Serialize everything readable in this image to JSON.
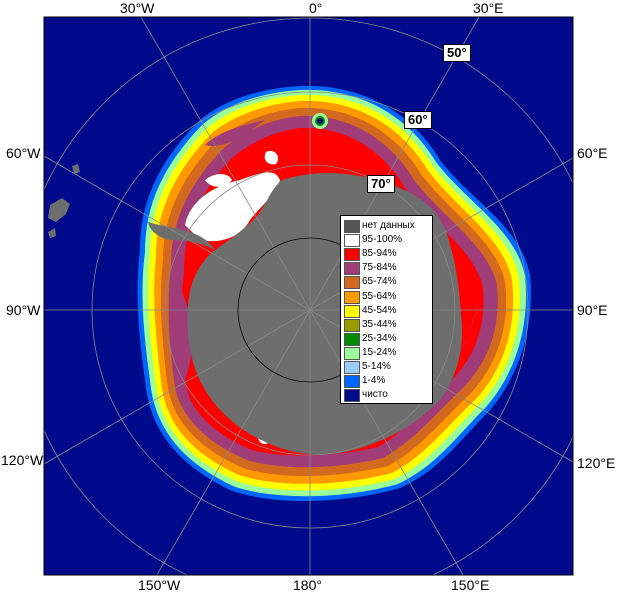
{
  "map": {
    "colors": {
      "ocean": "#000a8a",
      "land": "#6e6e6e",
      "ice_95_100": "#ffffff",
      "ice_85_94": "#ff0000",
      "ice_75_84": "#a03c78",
      "ice_65_74": "#d2691e",
      "ice_55_64": "#ff9900",
      "ice_45_54": "#ffff00",
      "ice_35_44": "#999900",
      "ice_25_34": "#008c00",
      "ice_15_24": "#99ff99",
      "ice_5_14": "#99ccff",
      "ice_1_4": "#0066ff",
      "clear": "#000a8a"
    },
    "lon_labels": {
      "top_30w": "30°W",
      "top_0": "0°",
      "top_30e": "30°E",
      "left_60w": "60°W",
      "left_90w": "90°W",
      "left_120w": "120°W",
      "right_60e": "60°E",
      "right_90e": "90°E",
      "right_120e": "120°E",
      "bottom_150w": "150°W",
      "bottom_180": "180°",
      "bottom_150e": "150°E"
    },
    "lat_labels": {
      "lat50": "50°",
      "lat60": "60°",
      "lat70": "70°"
    }
  },
  "legend": {
    "items": [
      {
        "label": "нет данных",
        "color": "#555555"
      },
      {
        "label": "95-100%",
        "color": "#ffffff"
      },
      {
        "label": "85-94%",
        "color": "#ff0000"
      },
      {
        "label": "75-84%",
        "color": "#a03c78"
      },
      {
        "label": "65-74%",
        "color": "#d2691e"
      },
      {
        "label": "55-64%",
        "color": "#ff9900"
      },
      {
        "label": "45-54%",
        "color": "#ffff00"
      },
      {
        "label": "35-44%",
        "color": "#999900"
      },
      {
        "label": "25-34%",
        "color": "#008c00"
      },
      {
        "label": "15-24%",
        "color": "#99ff99"
      },
      {
        "label": "5-14%",
        "color": "#99ccff"
      },
      {
        "label": "1-4%",
        "color": "#0066ff"
      },
      {
        "label": "чисто",
        "color": "#000a8a"
      }
    ]
  }
}
